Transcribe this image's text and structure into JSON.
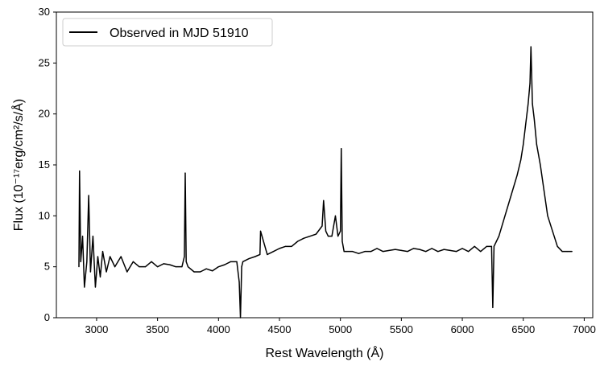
{
  "chart_data": {
    "type": "line",
    "xlabel": "Rest Wavelength (Å)",
    "ylabel": "Flux (10⁻¹⁷erg/cm²/s/Å)",
    "xlim": [
      2670,
      7070
    ],
    "ylim": [
      0,
      30
    ],
    "x_ticks": [
      3000,
      3500,
      4000,
      4500,
      5000,
      5500,
      6000,
      6500,
      7000
    ],
    "y_ticks": [
      0,
      5,
      10,
      15,
      20,
      25,
      30
    ],
    "grid": false,
    "legend_position": "top-left",
    "series": [
      {
        "name": "Observed in MJD 51910",
        "color": "#000000",
        "x": [
          2855,
          2860,
          2870,
          2885,
          2900,
          2920,
          2935,
          2950,
          2970,
          2990,
          3010,
          3030,
          3050,
          3080,
          3110,
          3150,
          3200,
          3250,
          3300,
          3350,
          3400,
          3450,
          3500,
          3550,
          3600,
          3650,
          3700,
          3720,
          3727,
          3735,
          3750,
          3800,
          3850,
          3900,
          3950,
          4000,
          4050,
          4100,
          4150,
          4170,
          4180,
          4190,
          4200,
          4250,
          4300,
          4340,
          4345,
          4400,
          4450,
          4500,
          4550,
          4600,
          4650,
          4700,
          4750,
          4800,
          4850,
          4862,
          4880,
          4900,
          4930,
          4959,
          4980,
          5000,
          5007,
          5015,
          5030,
          5050,
          5100,
          5150,
          5200,
          5250,
          5300,
          5350,
          5400,
          5450,
          5500,
          5550,
          5600,
          5650,
          5700,
          5750,
          5800,
          5850,
          5900,
          5950,
          6000,
          6050,
          6100,
          6150,
          6200,
          6240,
          6250,
          6260,
          6280,
          6300,
          6350,
          6400,
          6450,
          6480,
          6500,
          6520,
          6540,
          6555,
          6563,
          6575,
          6590,
          6610,
          6640,
          6670,
          6700,
          6740,
          6780,
          6820,
          6860,
          6900
        ],
        "y": [
          5.0,
          14.4,
          5.5,
          8.0,
          3.0,
          5.5,
          12.0,
          4.5,
          8.0,
          3.0,
          6.0,
          4.0,
          6.5,
          4.5,
          6.0,
          5.0,
          6.0,
          4.5,
          5.5,
          5.0,
          5.0,
          5.5,
          5.0,
          5.3,
          5.2,
          5.0,
          5.0,
          6.0,
          14.2,
          5.5,
          5.0,
          4.5,
          4.5,
          4.8,
          4.6,
          5.0,
          5.2,
          5.5,
          5.5,
          3.5,
          0.0,
          5.0,
          5.5,
          5.8,
          6.0,
          6.2,
          8.5,
          6.2,
          6.5,
          6.8,
          7.0,
          7.0,
          7.5,
          7.8,
          8.0,
          8.2,
          9.0,
          11.5,
          8.5,
          8.0,
          8.0,
          10.0,
          8.0,
          8.5,
          16.6,
          7.5,
          6.5,
          6.5,
          6.5,
          6.3,
          6.5,
          6.5,
          6.8,
          6.5,
          6.6,
          6.7,
          6.6,
          6.5,
          6.8,
          6.7,
          6.5,
          6.8,
          6.5,
          6.7,
          6.6,
          6.5,
          6.8,
          6.5,
          7.0,
          6.5,
          7.0,
          7.0,
          1.0,
          7.0,
          7.5,
          8.0,
          10.0,
          12.0,
          14.0,
          15.5,
          17.0,
          19.0,
          21.0,
          23.0,
          26.6,
          21.0,
          19.5,
          17.0,
          15.0,
          12.5,
          10.0,
          8.5,
          7.0,
          6.5,
          6.5,
          6.5
        ]
      }
    ]
  }
}
